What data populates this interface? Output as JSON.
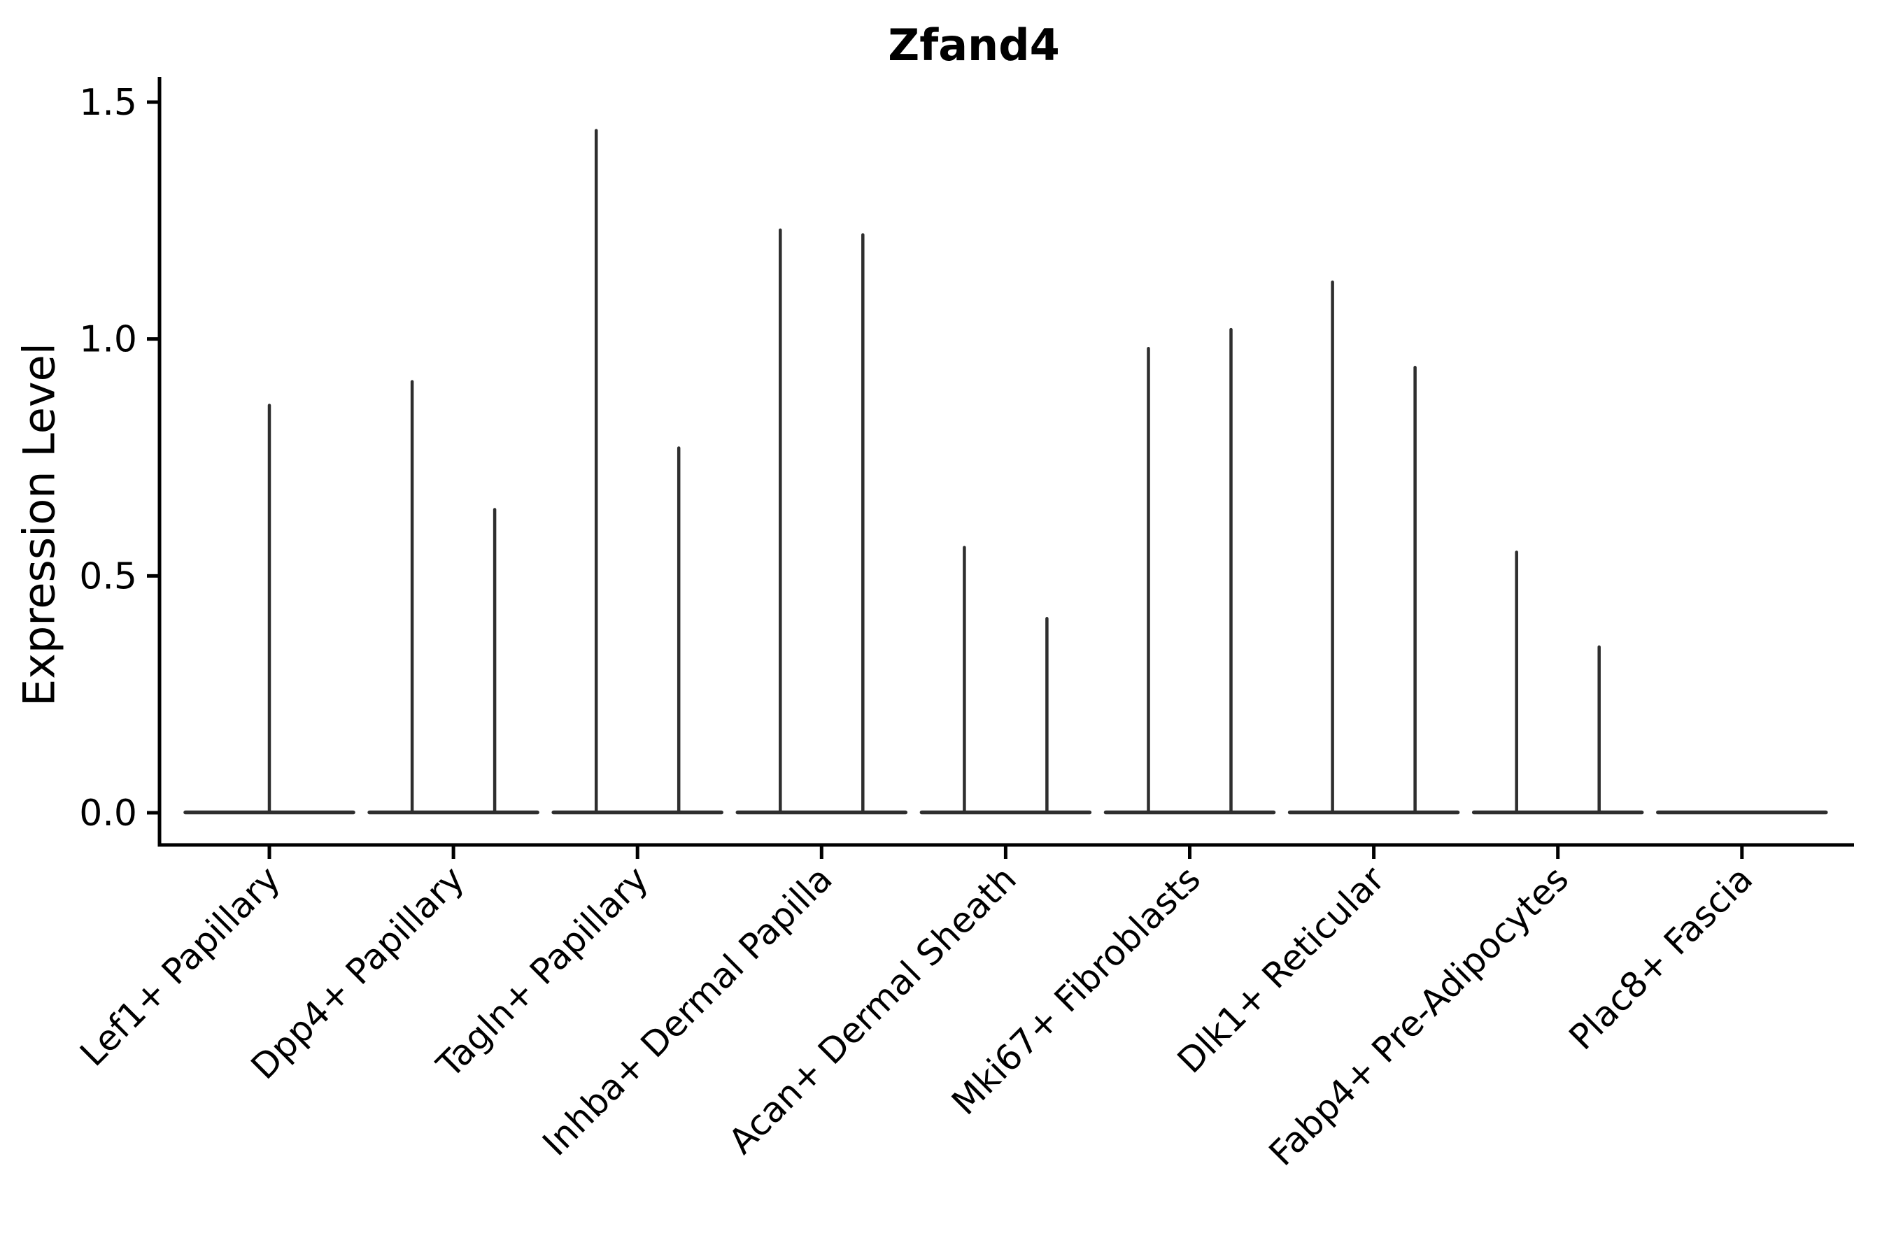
{
  "figure": {
    "title": "Zfand4",
    "y_axis": {
      "label": "Expression Level",
      "tick_labels": [
        "0.0",
        "0.5",
        "1.0",
        "1.5"
      ]
    },
    "x_axis": {
      "categories": [
        "Lef1+ Papillary",
        "Dpp4+ Papillary",
        "Tagln+ Papillary",
        "Inhba+ Dermal Papilla",
        "Acan+ Dermal Sheath",
        "Mki67+ Fibroblasts",
        "Dlk1+ Reticular",
        "Fabp4+ Pre-Adipocytes",
        "Plac8+ Fascia"
      ]
    }
  },
  "chart_data": {
    "type": "violin",
    "title": "Zfand4",
    "xlabel": "",
    "ylabel": "Expression Level",
    "ylim": [
      -0.07,
      1.55
    ],
    "yticks": [
      0.0,
      0.5,
      1.0,
      1.5
    ],
    "ytick_labels": [
      "0.0",
      "0.5",
      "1.0",
      "1.5"
    ],
    "grid": false,
    "legend": "none",
    "categories": [
      "Lef1+ Papillary",
      "Dpp4+ Papillary",
      "Tagln+ Papillary",
      "Inhba+ Dermal Papilla",
      "Acan+ Dermal Sheath",
      "Mki67+ Fibroblasts",
      "Dlk1+ Reticular",
      "Fabp4+ Pre-Adipocytes",
      "Plac8+ Fascia"
    ],
    "violins": [
      {
        "category": "Lef1+ Papillary",
        "base_value": 0.0,
        "spikes": [
          {
            "side": "center",
            "value": 0.86
          }
        ]
      },
      {
        "category": "Dpp4+ Papillary",
        "base_value": 0.0,
        "spikes": [
          {
            "side": "left",
            "value": 0.91
          },
          {
            "side": "right",
            "value": 0.64
          }
        ]
      },
      {
        "category": "Tagln+ Papillary",
        "base_value": 0.0,
        "spikes": [
          {
            "side": "left",
            "value": 1.44
          },
          {
            "side": "right",
            "value": 0.77
          }
        ]
      },
      {
        "category": "Inhba+ Dermal Papilla",
        "base_value": 0.0,
        "spikes": [
          {
            "side": "left",
            "value": 1.23
          },
          {
            "side": "right",
            "value": 1.22
          }
        ]
      },
      {
        "category": "Acan+ Dermal Sheath",
        "base_value": 0.0,
        "spikes": [
          {
            "side": "left",
            "value": 0.56
          },
          {
            "side": "right",
            "value": 0.41
          }
        ]
      },
      {
        "category": "Mki67+ Fibroblasts",
        "base_value": 0.0,
        "spikes": [
          {
            "side": "left",
            "value": 0.98
          },
          {
            "side": "right",
            "value": 1.02
          }
        ]
      },
      {
        "category": "Dlk1+ Reticular",
        "base_value": 0.0,
        "spikes": [
          {
            "side": "left",
            "value": 1.12
          },
          {
            "side": "right",
            "value": 0.94
          }
        ]
      },
      {
        "category": "Fabp4+ Pre-Adipocytes",
        "base_value": 0.0,
        "spikes": [
          {
            "side": "left",
            "value": 0.55
          },
          {
            "side": "right",
            "value": 0.35
          }
        ]
      },
      {
        "category": "Plac8+ Fascia",
        "base_value": 0.0,
        "spikes": []
      }
    ]
  },
  "colors": {
    "violin_line": "#2e2e2e",
    "spine": "#000000",
    "text": "#000000",
    "background": "#ffffff"
  }
}
